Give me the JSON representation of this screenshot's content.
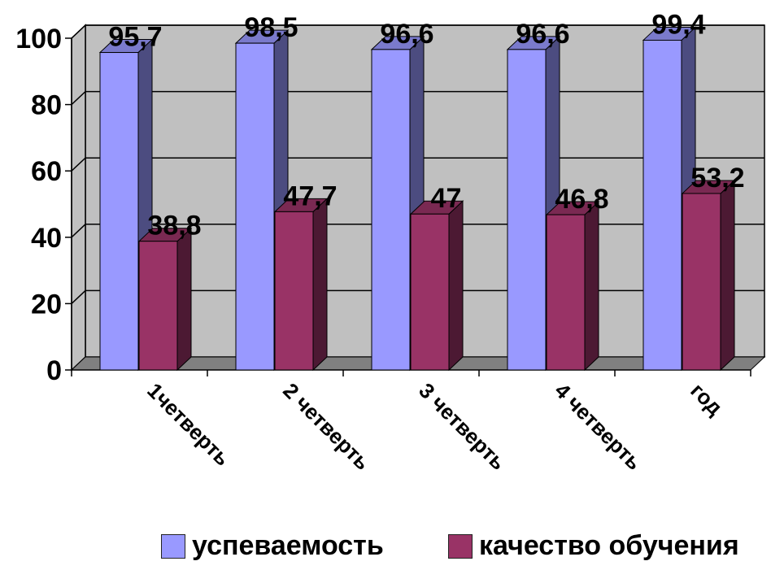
{
  "chart_data": {
    "type": "bar",
    "title": "",
    "xlabel": "",
    "ylabel": "",
    "ylim": [
      0,
      100
    ],
    "yticks": [
      0,
      20,
      40,
      60,
      80,
      100
    ],
    "categories": [
      "1четверть",
      "2 четверть",
      "3 четверть",
      "4 четверть",
      "год"
    ],
    "series": [
      {
        "name": "успеваемость",
        "values": [
          95.7,
          98.5,
          96.6,
          96.6,
          99.4
        ],
        "labels": [
          "95,7",
          "98,5",
          "96,6",
          "96,6",
          "99,4"
        ],
        "color": "#9999ff",
        "side_color": "#4c4c80",
        "top_color": "#7a7acc"
      },
      {
        "name": "качество обучения",
        "values": [
          38.8,
          47.7,
          47,
          46.8,
          53.2
        ],
        "labels": [
          "38,8",
          "47,7",
          "47",
          "46,8",
          "53,2"
        ],
        "color": "#993366",
        "side_color": "#4c1933",
        "top_color": "#7a2952"
      }
    ],
    "grid": true,
    "legend": "bottom",
    "style": "3d-clustered-column",
    "wall_color": "#c0c0c0",
    "floor_color": "#808080"
  }
}
